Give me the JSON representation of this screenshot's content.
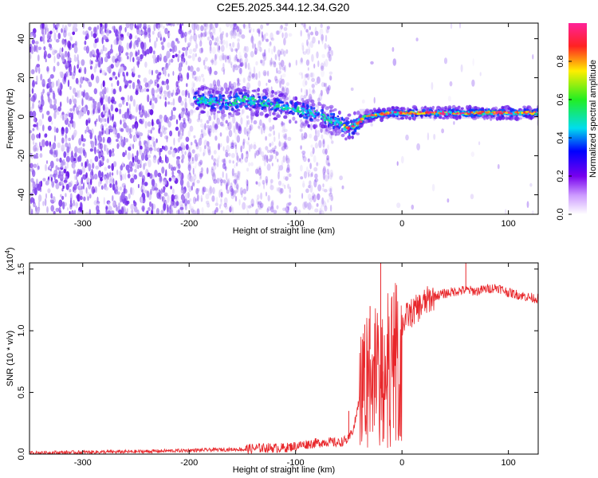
{
  "title": "C2E5.2025.344.12.34.G20",
  "chart_data": [
    {
      "type": "heatmap",
      "xlabel": "Height of straight line (km)",
      "ylabel": "Frequency (Hz)",
      "xlim": [
        -350,
        128
      ],
      "ylim": [
        -50,
        48
      ],
      "xticks": [
        -300,
        -200,
        -100,
        0,
        100
      ],
      "yticks": [
        -40,
        -20,
        0,
        20,
        40
      ],
      "ridge": {
        "x": [
          -195,
          -180,
          -160,
          -150,
          -140,
          -120,
          -100,
          -80,
          -60,
          -50,
          -45,
          -35,
          -25,
          -10,
          0,
          50,
          128
        ],
        "frequency_hz": [
          9,
          8,
          7,
          9,
          8,
          6,
          4,
          1,
          -3,
          -6,
          -5,
          0,
          1,
          2,
          2,
          2,
          2
        ]
      },
      "colorbar": {
        "label": "Normalized spectral amplitude",
        "range": [
          0.0,
          1.0
        ],
        "ticks": [
          0.0,
          0.2,
          0.4,
          0.6,
          0.8
        ],
        "tick_labels": [
          "0.0",
          "0.2",
          "0.4",
          "0.6",
          "0.8"
        ]
      }
    },
    {
      "type": "line",
      "xlabel": "Height of straight line (km)",
      "ylabel": "SNR (10 * v/v)",
      "multiplier_label": "(x10",
      "multiplier_exponent": "4",
      "xlim": [
        -350,
        128
      ],
      "ylim": [
        0,
        1.55
      ],
      "xticks": [
        -300,
        -200,
        -100,
        0,
        100
      ],
      "yticks": [
        0.0,
        0.5,
        1.0,
        1.5
      ],
      "ytick_labels": [
        "0.0",
        "0.5",
        "1.0",
        "1.5"
      ],
      "series": [
        {
          "color": "#e8262a",
          "x": [
            -350,
            -250,
            -200,
            -150,
            -130,
            -110,
            -90,
            -70,
            -60,
            -50,
            -45,
            -40,
            -35,
            -30,
            -25,
            -22,
            -20,
            -15,
            -10,
            -5,
            0,
            5,
            10,
            20,
            30,
            40,
            50,
            60,
            70,
            80,
            90,
            100,
            110,
            120,
            128
          ],
          "y": [
            0.01,
            0.02,
            0.03,
            0.04,
            0.05,
            0.05,
            0.08,
            0.1,
            0.09,
            0.12,
            0.22,
            0.45,
            0.7,
            0.85,
            0.8,
            1.0,
            0.55,
            0.85,
            0.9,
            0.95,
            1.05,
            1.12,
            1.15,
            1.22,
            1.28,
            1.3,
            1.32,
            1.33,
            1.32,
            1.34,
            1.35,
            1.31,
            1.29,
            1.27,
            1.26
          ],
          "spikes": [
            {
              "x": -50,
              "y": 0.35
            },
            {
              "x": -35,
              "y": 1.05
            },
            {
              "x": -30,
              "y": 1.2
            },
            {
              "x": -20,
              "y": 1.55
            },
            {
              "x": -18,
              "y": 0.1
            },
            {
              "x": 60,
              "y": 1.55
            }
          ]
        }
      ]
    }
  ]
}
